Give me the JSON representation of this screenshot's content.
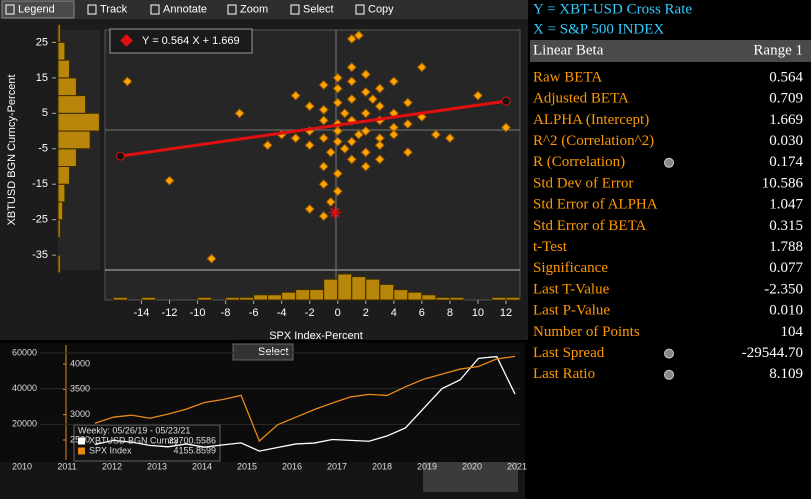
{
  "toolbar": {
    "items": [
      "Legend",
      "Track",
      "Annotate",
      "Zoom",
      "Select",
      "Copy"
    ]
  },
  "chart_data": [
    {
      "type": "scatter",
      "xlabel": "SPX Index-Percent",
      "ylabel": "XBTUSD BGN Curncy-Percent",
      "color": "#ffa500",
      "x": [
        -15,
        -12,
        -9,
        -7,
        -5,
        -4,
        -3,
        -2,
        -2,
        -1,
        -1,
        -1,
        -1,
        -1,
        -0.5,
        -1,
        -2,
        0,
        0,
        0,
        0,
        0,
        0,
        0,
        0.5,
        1,
        1,
        1,
        1,
        1,
        1,
        1.5,
        2,
        2,
        2,
        2,
        2,
        3,
        3,
        3,
        3,
        3,
        4,
        4,
        4,
        5,
        5,
        5,
        6,
        6,
        7,
        8,
        10,
        12,
        -3,
        -1,
        1,
        2,
        3,
        0.5,
        -0.5,
        1.5,
        2.5,
        4,
        -2,
        0
      ],
      "y": [
        14,
        -14,
        -36,
        5,
        -4,
        -1,
        -2,
        0,
        -4,
        -2,
        6,
        13,
        -10,
        -15,
        -20,
        -24,
        -22,
        -17,
        -12,
        0,
        2,
        8,
        15,
        12,
        -5,
        -3,
        3,
        9,
        14,
        18,
        26,
        27,
        -6,
        0,
        5,
        11,
        16,
        -2,
        3,
        7,
        12,
        -4,
        1,
        5,
        -1,
        2,
        -6,
        8,
        4,
        18,
        -1,
        -2,
        10,
        1,
        10,
        3,
        -8,
        -10,
        -8,
        5,
        -6,
        -1,
        9,
        14,
        7,
        -3
      ],
      "xlim": [
        -16.6,
        13
      ],
      "ylim": [
        -39.2,
        28.5
      ],
      "xticks": [
        -14,
        -12,
        -10,
        -8,
        -6,
        -4,
        -2,
        0,
        2,
        4,
        6,
        8,
        10,
        12
      ],
      "yticks": [
        25,
        15,
        5,
        -5,
        -15,
        -25,
        -35
      ],
      "regression": {
        "label": "Y = 0.564 X + 1.669",
        "slope": 0.564,
        "intercept": 1.669,
        "x": [
          -15.5,
          12
        ],
        "color": "#e01010"
      },
      "current_point": {
        "x": -0.2,
        "y": -23
      },
      "x_histogram": {
        "bins": [
          -16,
          -15,
          -14,
          -13,
          -12,
          -11,
          -10,
          -9,
          -8,
          -7,
          -6,
          -5,
          -4,
          -3,
          -2,
          -1,
          0,
          1,
          2,
          3,
          4,
          5,
          6,
          7,
          8,
          9,
          10,
          11,
          12,
          13
        ],
        "counts": [
          1,
          0,
          1,
          0,
          0,
          0,
          1,
          0,
          1,
          1,
          2,
          2,
          3,
          4,
          4,
          8,
          10,
          9,
          8,
          6,
          4,
          3,
          2,
          1,
          1,
          0,
          0,
          1,
          1
        ]
      },
      "y_histogram": {
        "bins": [
          -40,
          -35,
          -30,
          -25,
          -20,
          -15,
          -10,
          -5,
          0,
          5,
          10,
          15,
          20,
          25,
          30
        ],
        "counts": [
          1,
          0,
          1,
          2,
          3,
          5,
          8,
          14,
          18,
          12,
          8,
          5,
          3,
          1
        ]
      },
      "hist_color": "#b8860b"
    },
    {
      "type": "line",
      "legend_title": "Weekly: 05/26/19 - 05/23/21",
      "ylim": [
        0,
        64500
      ],
      "yticks": [
        20000,
        40000,
        60000
      ],
      "y2lim": [
        2105,
        4375
      ],
      "y2ticks": [
        2500,
        3000,
        3500,
        4000
      ],
      "series": [
        {
          "name": "XBTUSD BGN Curncy",
          "last": 33700.5586,
          "color": "#ffffff",
          "values": [
            8700,
            11000,
            10000,
            8200,
            7400,
            9000,
            7200,
            8500,
            9600,
            5000,
            7000,
            9000,
            9500,
            11500,
            11000,
            10500,
            13500,
            18000,
            29000,
            40000,
            45000,
            57000,
            58000,
            37000
          ]
        },
        {
          "name": "SPX Index",
          "last": 4155.8599,
          "color": "#e8891a",
          "axis": "y2",
          "values": [
            2830,
            2950,
            2990,
            2930,
            3010,
            3110,
            3240,
            3300,
            3380,
            2480,
            2800,
            2950,
            3100,
            3230,
            3350,
            3400,
            3380,
            3550,
            3700,
            3800,
            3900,
            3950,
            4100,
            4150
          ]
        }
      ],
      "button": "Select"
    }
  ],
  "navigator": {
    "years": [
      "2010",
      "2011",
      "2012",
      "2013",
      "2014",
      "2015",
      "2016",
      "2017",
      "2018",
      "2019",
      "2020",
      "2021"
    ]
  },
  "stats": {
    "y_label": "Y = XBT-USD Cross Rate",
    "x_label": "X = S&P 500 INDEX",
    "header": [
      "Linear Beta",
      "Range 1"
    ],
    "rows": [
      {
        "label": "Raw BETA",
        "value": "0.564"
      },
      {
        "label": "Adjusted BETA",
        "value": "0.709"
      },
      {
        "label": "ALPHA (Intercept)",
        "value": "1.669"
      },
      {
        "label": "R^2 (Correlation^2)",
        "value": "0.030"
      },
      {
        "label": "R (Correlation)",
        "value": "0.174",
        "icon": true
      },
      {
        "label": "Std Dev of Error",
        "value": "10.586"
      },
      {
        "label": "Std Error of ALPHA",
        "value": "1.047"
      },
      {
        "label": "Std Error of BETA",
        "value": "0.315"
      },
      {
        "label": "t-Test",
        "value": "1.788"
      },
      {
        "label": "Significance",
        "value": "0.077"
      },
      {
        "label": "Last T-Value",
        "value": "-2.350"
      },
      {
        "label": "Last P-Value",
        "value": "0.010"
      },
      {
        "label": "Number of Points",
        "value": "104"
      },
      {
        "label": "Last Spread",
        "value": "-29544.70",
        "icon": true
      },
      {
        "label": "Last Ratio",
        "value": "8.109",
        "icon": true
      }
    ]
  }
}
